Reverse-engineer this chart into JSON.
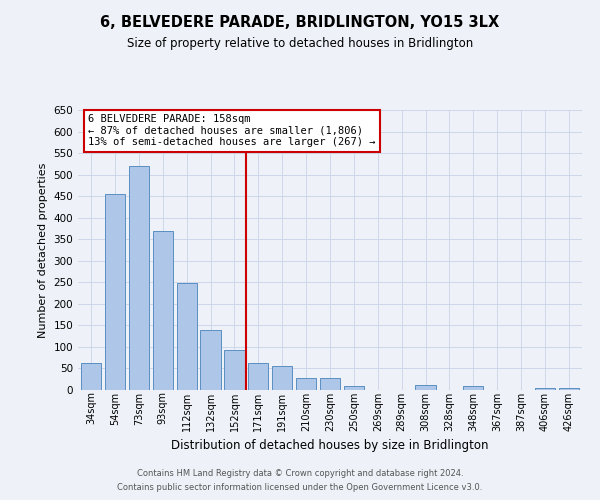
{
  "title": "6, BELVEDERE PARADE, BRIDLINGTON, YO15 3LX",
  "subtitle": "Size of property relative to detached houses in Bridlington",
  "xlabel": "Distribution of detached houses by size in Bridlington",
  "ylabel": "Number of detached properties",
  "bar_labels": [
    "34sqm",
    "54sqm",
    "73sqm",
    "93sqm",
    "112sqm",
    "132sqm",
    "152sqm",
    "171sqm",
    "191sqm",
    "210sqm",
    "230sqm",
    "250sqm",
    "269sqm",
    "289sqm",
    "308sqm",
    "328sqm",
    "348sqm",
    "367sqm",
    "387sqm",
    "406sqm",
    "426sqm"
  ],
  "bar_heights": [
    63,
    456,
    521,
    369,
    248,
    140,
    92,
    62,
    55,
    27,
    27,
    10,
    0,
    0,
    12,
    0,
    10,
    0,
    0,
    5,
    5
  ],
  "bar_color": "#aec6e8",
  "bar_edge_color": "#5a8fc2",
  "vline_x_index": 6,
  "vline_color": "#cc0000",
  "ylim": [
    0,
    650
  ],
  "yticks": [
    0,
    50,
    100,
    150,
    200,
    250,
    300,
    350,
    400,
    450,
    500,
    550,
    600,
    650
  ],
  "annotation_title": "6 BELVEDERE PARADE: 158sqm",
  "annotation_line1": "← 87% of detached houses are smaller (1,806)",
  "annotation_line2": "13% of semi-detached houses are larger (267) →",
  "footer1": "Contains HM Land Registry data © Crown copyright and database right 2024.",
  "footer2": "Contains public sector information licensed under the Open Government Licence v3.0.",
  "bg_color": "#eef2f8",
  "grid_color": "#c8d4e8"
}
